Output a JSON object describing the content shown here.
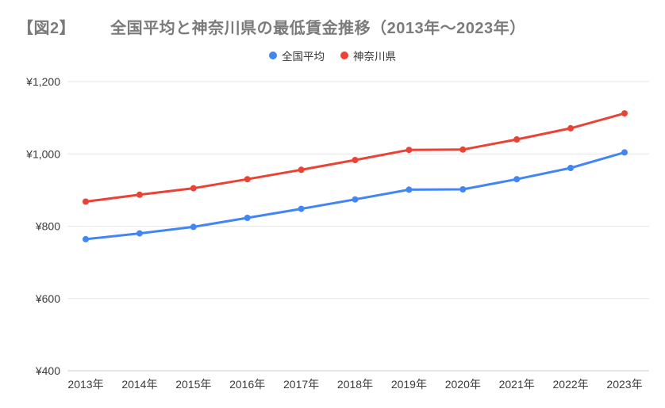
{
  "figure": {
    "tag": "【図2】",
    "title": "全国平均と神奈川県の最低賃金推移（2013年～2023年）"
  },
  "legend": {
    "items": [
      {
        "label": "全国平均",
        "color": "#4285F4",
        "marker": "circle-dot-icon"
      },
      {
        "label": "神奈川県",
        "color": "#EA4335",
        "marker": "circle-dot-icon"
      }
    ]
  },
  "colors": {
    "title": "#7b7b7b",
    "axis_label": "#3b3b3b",
    "gridline": "#e6e6e6",
    "axis_line": "#cccccc",
    "background": "#ffffff",
    "series_blue": "#4285F4",
    "series_red": "#EA4335"
  },
  "chart_data": {
    "type": "line",
    "title": "全国平均と神奈川県の最低賃金推移（2013年～2023年）",
    "categories": [
      "2013年",
      "2014年",
      "2015年",
      "2016年",
      "2017年",
      "2018年",
      "2019年",
      "2020年",
      "2021年",
      "2022年",
      "2023年"
    ],
    "series": [
      {
        "name": "全国平均",
        "color": "#4285F4",
        "values": [
          764,
          780,
          798,
          823,
          848,
          874,
          901,
          902,
          930,
          961,
          1004
        ]
      },
      {
        "name": "神奈川県",
        "color": "#EA4335",
        "values": [
          868,
          887,
          905,
          930,
          956,
          983,
          1011,
          1012,
          1040,
          1071,
          1112
        ]
      }
    ],
    "xlabel": "",
    "ylabel": "",
    "ylim": [
      400,
      1200
    ],
    "yticks": [
      400,
      600,
      800,
      1000,
      1200
    ],
    "ytick_labels": [
      "¥400",
      "¥600",
      "¥800",
      "¥1,000",
      "¥1,200"
    ],
    "currency_format": "¥#,###",
    "grid": true,
    "legend_position": "top",
    "marker": "circle",
    "line_width": 3,
    "marker_radius": 4
  }
}
